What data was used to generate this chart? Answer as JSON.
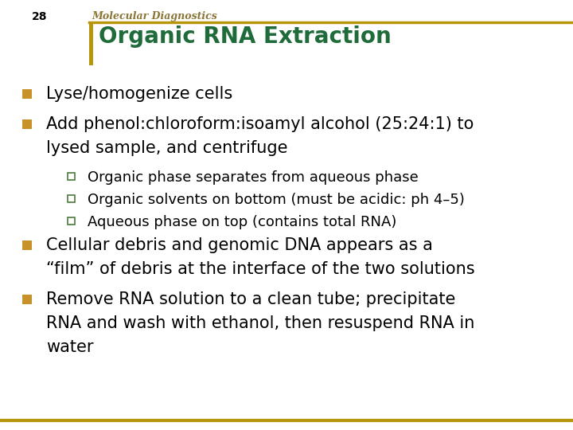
{
  "slide_number": "28",
  "header_text": "Molecular Diagnostics",
  "title": "Organic RNA Extraction",
  "title_color": "#1F6B3A",
  "header_color": "#8B7536",
  "gold_line_color": "#B8960C",
  "background_color": "#FFFFFF",
  "bullet_color": "#C8922A",
  "sub_bullet_color": "#4B7A3A",
  "bullets": [
    {
      "level": 1,
      "text": "Lyse/homogenize cells"
    },
    {
      "level": 1,
      "text": "Add phenol:chloroform:isoamyl alcohol (25:24:1) to\nlysed sample, and centrifuge"
    },
    {
      "level": 2,
      "text": "Organic phase separates from aqueous phase"
    },
    {
      "level": 2,
      "text": "Organic solvents on bottom (must be acidic: ph 4–5)"
    },
    {
      "level": 2,
      "text": "Aqueous phase on top (contains total RNA)"
    },
    {
      "level": 1,
      "text": "Cellular debris and genomic DNA appears as a\n“film” of debris at the interface of the two solutions"
    },
    {
      "level": 1,
      "text": "Remove RNA solution to a clean tube; precipitate\nRNA and wash with ethanol, then resuspend RNA in\nwater"
    }
  ],
  "l1_fontsize": 15,
  "l2_fontsize": 13,
  "header_fontsize": 9,
  "title_fontsize": 20,
  "slide_num_fontsize": 10
}
